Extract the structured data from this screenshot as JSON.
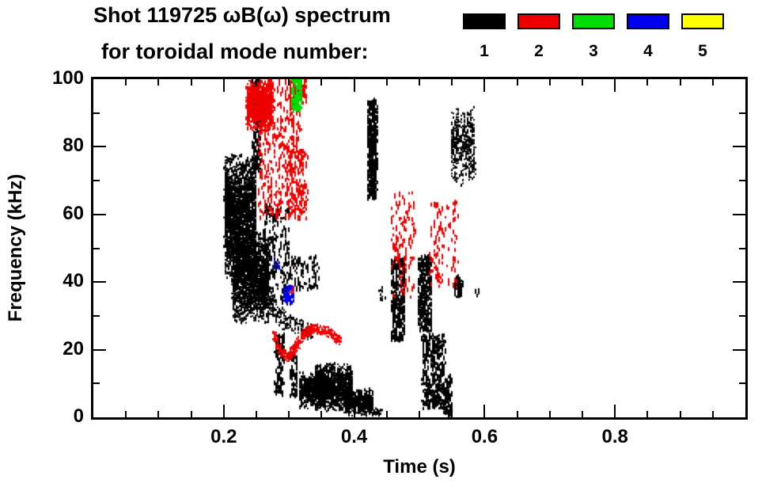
{
  "header": {
    "title_line1": "Shot 119725 ωB(ω) spectrum",
    "title_line2": "for toroidal mode number:"
  },
  "legend": {
    "entries": [
      {
        "label": "1",
        "color": "#000000"
      },
      {
        "label": "2",
        "color": "#ee0000"
      },
      {
        "label": "3",
        "color": "#00dd00"
      },
      {
        "label": "4",
        "color": "#0000ee"
      },
      {
        "label": "5",
        "color": "#ffff00"
      }
    ]
  },
  "chart_data": {
    "type": "scatter",
    "subtype": "mode-spectrogram",
    "title": "Shot 119725 ωB(ω) spectrum for toroidal mode number",
    "xlabel": "Time (s)",
    "ylabel": "Frequency (kHz)",
    "xlim": [
      0,
      1.0
    ],
    "ylim": [
      0,
      100
    ],
    "x_ticks": [
      0.2,
      0.4,
      0.6,
      0.8
    ],
    "x_tick_labels": [
      "0.2",
      "0.4",
      "0.6",
      "0.8"
    ],
    "x_minor_step": 0.05,
    "y_ticks": [
      0,
      20,
      40,
      60,
      80,
      100
    ],
    "y_tick_labels": [
      "0",
      "20",
      "40",
      "60",
      "80",
      "100"
    ],
    "y_minor_step": 10,
    "grid": false,
    "legend_position": "top-right",
    "mode_colors": [
      "#000000",
      "#ee0000",
      "#00dd00",
      "#0000ee",
      "#ffff00"
    ],
    "series_legend": [
      "1",
      "2",
      "3",
      "4",
      "5"
    ],
    "clusters": [
      {
        "mode": 1,
        "shape": "blob",
        "t": [
          0.2,
          0.248
        ],
        "f": [
          40,
          78
        ],
        "n": 2300
      },
      {
        "mode": 1,
        "shape": "blob",
        "t": [
          0.212,
          0.268
        ],
        "f": [
          27,
          55
        ],
        "n": 1900
      },
      {
        "mode": 1,
        "shape": "streak",
        "t": [
          0.243,
          0.256
        ],
        "f": [
          72,
          100
        ],
        "n": 170
      },
      {
        "mode": 1,
        "shape": "path",
        "pts": [
          [
            0.252,
            38
          ],
          [
            0.276,
            31
          ],
          [
            0.302,
            27
          ],
          [
            0.332,
            25
          ]
        ],
        "n": 240,
        "jt": 0.006,
        "jf": 2.5
      },
      {
        "mode": 1,
        "shape": "streak",
        "t": [
          0.258,
          0.302
        ],
        "f": [
          33,
          62
        ],
        "n": 210
      },
      {
        "mode": 1,
        "shape": "streak",
        "t": [
          0.277,
          0.292
        ],
        "f": [
          6,
          24
        ],
        "n": 90
      },
      {
        "mode": 1,
        "shape": "streak",
        "t": [
          0.3,
          0.312
        ],
        "f": [
          5,
          18
        ],
        "n": 60
      },
      {
        "mode": 1,
        "shape": "blob",
        "t": [
          0.315,
          0.355
        ],
        "f": [
          2,
          13
        ],
        "n": 650
      },
      {
        "mode": 1,
        "shape": "blob",
        "t": [
          0.338,
          0.396
        ],
        "f": [
          1,
          16
        ],
        "n": 1200
      },
      {
        "mode": 1,
        "shape": "blob",
        "t": [
          0.384,
          0.428
        ],
        "f": [
          0,
          8
        ],
        "n": 500
      },
      {
        "mode": 1,
        "shape": "path",
        "pts": [
          [
            0.418,
            3
          ],
          [
            0.438,
            1
          ]
        ],
        "n": 70,
        "jt": 0.004,
        "jf": 1.0
      },
      {
        "mode": 1,
        "shape": "streak",
        "t": [
          0.42,
          0.434
        ],
        "f": [
          64,
          93
        ],
        "n": 420
      },
      {
        "mode": 1,
        "shape": "streak",
        "t": [
          0.456,
          0.476
        ],
        "f": [
          22,
          46
        ],
        "n": 300
      },
      {
        "mode": 1,
        "shape": "streak",
        "t": [
          0.497,
          0.518
        ],
        "f": [
          25,
          47
        ],
        "n": 300
      },
      {
        "mode": 1,
        "shape": "streak",
        "t": [
          0.503,
          0.538
        ],
        "f": [
          2,
          24
        ],
        "n": 330
      },
      {
        "mode": 1,
        "shape": "streak",
        "t": [
          0.536,
          0.549
        ],
        "f": [
          0,
          12
        ],
        "n": 90
      },
      {
        "mode": 1,
        "shape": "blob",
        "t": [
          0.548,
          0.584
        ],
        "f": [
          68,
          92
        ],
        "n": 430
      },
      {
        "mode": 1,
        "shape": "streak",
        "t": [
          0.553,
          0.566
        ],
        "f": [
          35,
          41
        ],
        "n": 70
      },
      {
        "mode": 1,
        "shape": "streak",
        "t": [
          0.3,
          0.345
        ],
        "f": [
          37,
          47
        ],
        "n": 90
      },
      {
        "mode": 1,
        "shape": "blob",
        "t": [
          0.437,
          0.447
        ],
        "f": [
          34,
          38
        ],
        "n": 12
      },
      {
        "mode": 1,
        "shape": "blob",
        "t": [
          0.583,
          0.591
        ],
        "f": [
          35,
          39
        ],
        "n": 10
      },
      {
        "mode": 2,
        "shape": "blob",
        "t": [
          0.234,
          0.274
        ],
        "f": [
          84,
          100
        ],
        "n": 1150
      },
      {
        "mode": 2,
        "shape": "streak",
        "t": [
          0.252,
          0.318
        ],
        "f": [
          58,
          99
        ],
        "n": 430
      },
      {
        "mode": 2,
        "shape": "streak",
        "t": [
          0.296,
          0.328
        ],
        "f": [
          58,
          78
        ],
        "n": 130
      },
      {
        "mode": 2,
        "shape": "path",
        "pts": [
          [
            0.276,
            24
          ],
          [
            0.287,
            19
          ],
          [
            0.298,
            17.5
          ],
          [
            0.31,
            20.5
          ],
          [
            0.322,
            24.5
          ],
          [
            0.338,
            26
          ],
          [
            0.358,
            25
          ],
          [
            0.378,
            22.5
          ]
        ],
        "n": 430,
        "jt": 0.003,
        "jf": 1.4
      },
      {
        "mode": 2,
        "shape": "streak",
        "t": [
          0.455,
          0.492
        ],
        "f": [
          35,
          66
        ],
        "n": 130
      },
      {
        "mode": 2,
        "shape": "streak",
        "t": [
          0.515,
          0.558
        ],
        "f": [
          38,
          63
        ],
        "n": 110
      },
      {
        "mode": 2,
        "shape": "streak",
        "t": [
          0.3,
          0.326
        ],
        "f": [
          92,
          100
        ],
        "n": 90
      },
      {
        "mode": 2,
        "shape": "blob",
        "t": [
          0.299,
          0.307
        ],
        "f": [
          36,
          39
        ],
        "n": 22
      },
      {
        "mode": 3,
        "shape": "streak",
        "t": [
          0.303,
          0.318
        ],
        "f": [
          90,
          100
        ],
        "n": 110
      },
      {
        "mode": 4,
        "shape": "streak",
        "t": [
          0.29,
          0.307
        ],
        "f": [
          33,
          38
        ],
        "n": 45
      },
      {
        "mode": 4,
        "shape": "blob",
        "t": [
          0.277,
          0.285
        ],
        "f": [
          43,
          46
        ],
        "n": 12
      }
    ]
  }
}
